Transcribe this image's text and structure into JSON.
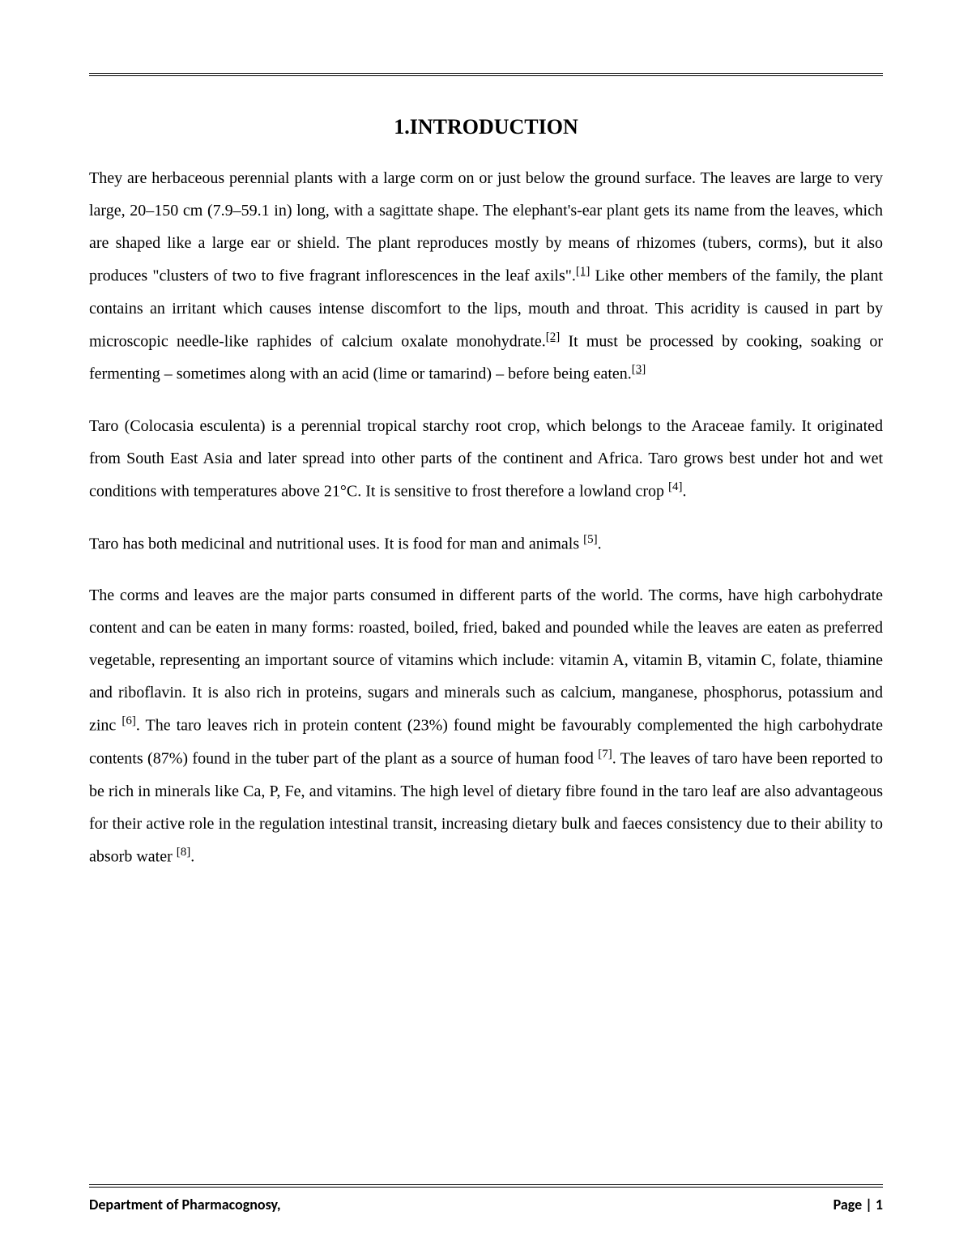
{
  "heading": "1.INTRODUCTION",
  "p1": {
    "t1": "They are herbaceous perennial plants with a large corm on or just below the ground surface. The leaves are large to very large, 20–150 cm (7.9–59.1 in) long, with a sagittate shape. The elephant's-ear plant gets its name from the leaves, which are shaped like a large ear or shield. The plant reproduces mostly by means of rhizomes (tubers, corms), but it also produces \"clusters of two to five fragrant inflorescences in the leaf axils\".",
    "c1": "[1]",
    "t2": " Like other members of the family, the plant contains an irritant which causes intense discomfort to the lips, mouth and throat. This acridity is caused in part by microscopic needle-like raphides of calcium oxalate monohydrate.",
    "c2": "[2]",
    "t3": " It must be processed by cooking, soaking or fermenting – sometimes along with an acid (lime or tamarind) – before being eaten.",
    "c3": "[3]"
  },
  "p2": {
    "t1": "Taro (Colocasia esculenta) is a perennial tropical starchy root crop, which belongs to the Araceae family. It originated from South East Asia and later spread into other parts of the continent and Africa. Taro grows best under hot and wet conditions with temperatures above 21°C. It is sensitive to frost therefore a lowland crop ",
    "c1": "[4]",
    "t2": "."
  },
  "p3": {
    "t1": "Taro has both medicinal and nutritional uses. It is food for man and animals ",
    "c1": "[5]",
    "t2": "."
  },
  "p4": {
    "t1": "The corms and leaves are the major parts consumed in different parts of the world. The corms, have high carbohydrate content and can be eaten in many forms: roasted, boiled, fried, baked and pounded while the leaves are eaten as preferred vegetable, representing an important source of vitamins which include: vitamin A, vitamin B, vitamin C, folate, thiamine and riboflavin. It is also rich in proteins, sugars and minerals such as calcium, manganese, phosphorus, potassium and zinc ",
    "c1": "[6]",
    "t2": ". The taro leaves rich in protein content (23%) found might be favourably complemented the high carbohydrate contents (87%) found in the tuber part of the plant as a source of human food ",
    "c2": "[7]",
    "t3": ". The leaves of taro have been reported to be rich in minerals like Ca, P, Fe, and vitamins. The high level of dietary fibre found in the taro leaf are also advantageous for their active role in the regulation intestinal transit, increasing dietary bulk and faeces consistency due to their ability to absorb water ",
    "c3": "[8]",
    "t4": "."
  },
  "footer": {
    "left": "Department of Pharmacognosy,",
    "right": "Page | 1"
  }
}
